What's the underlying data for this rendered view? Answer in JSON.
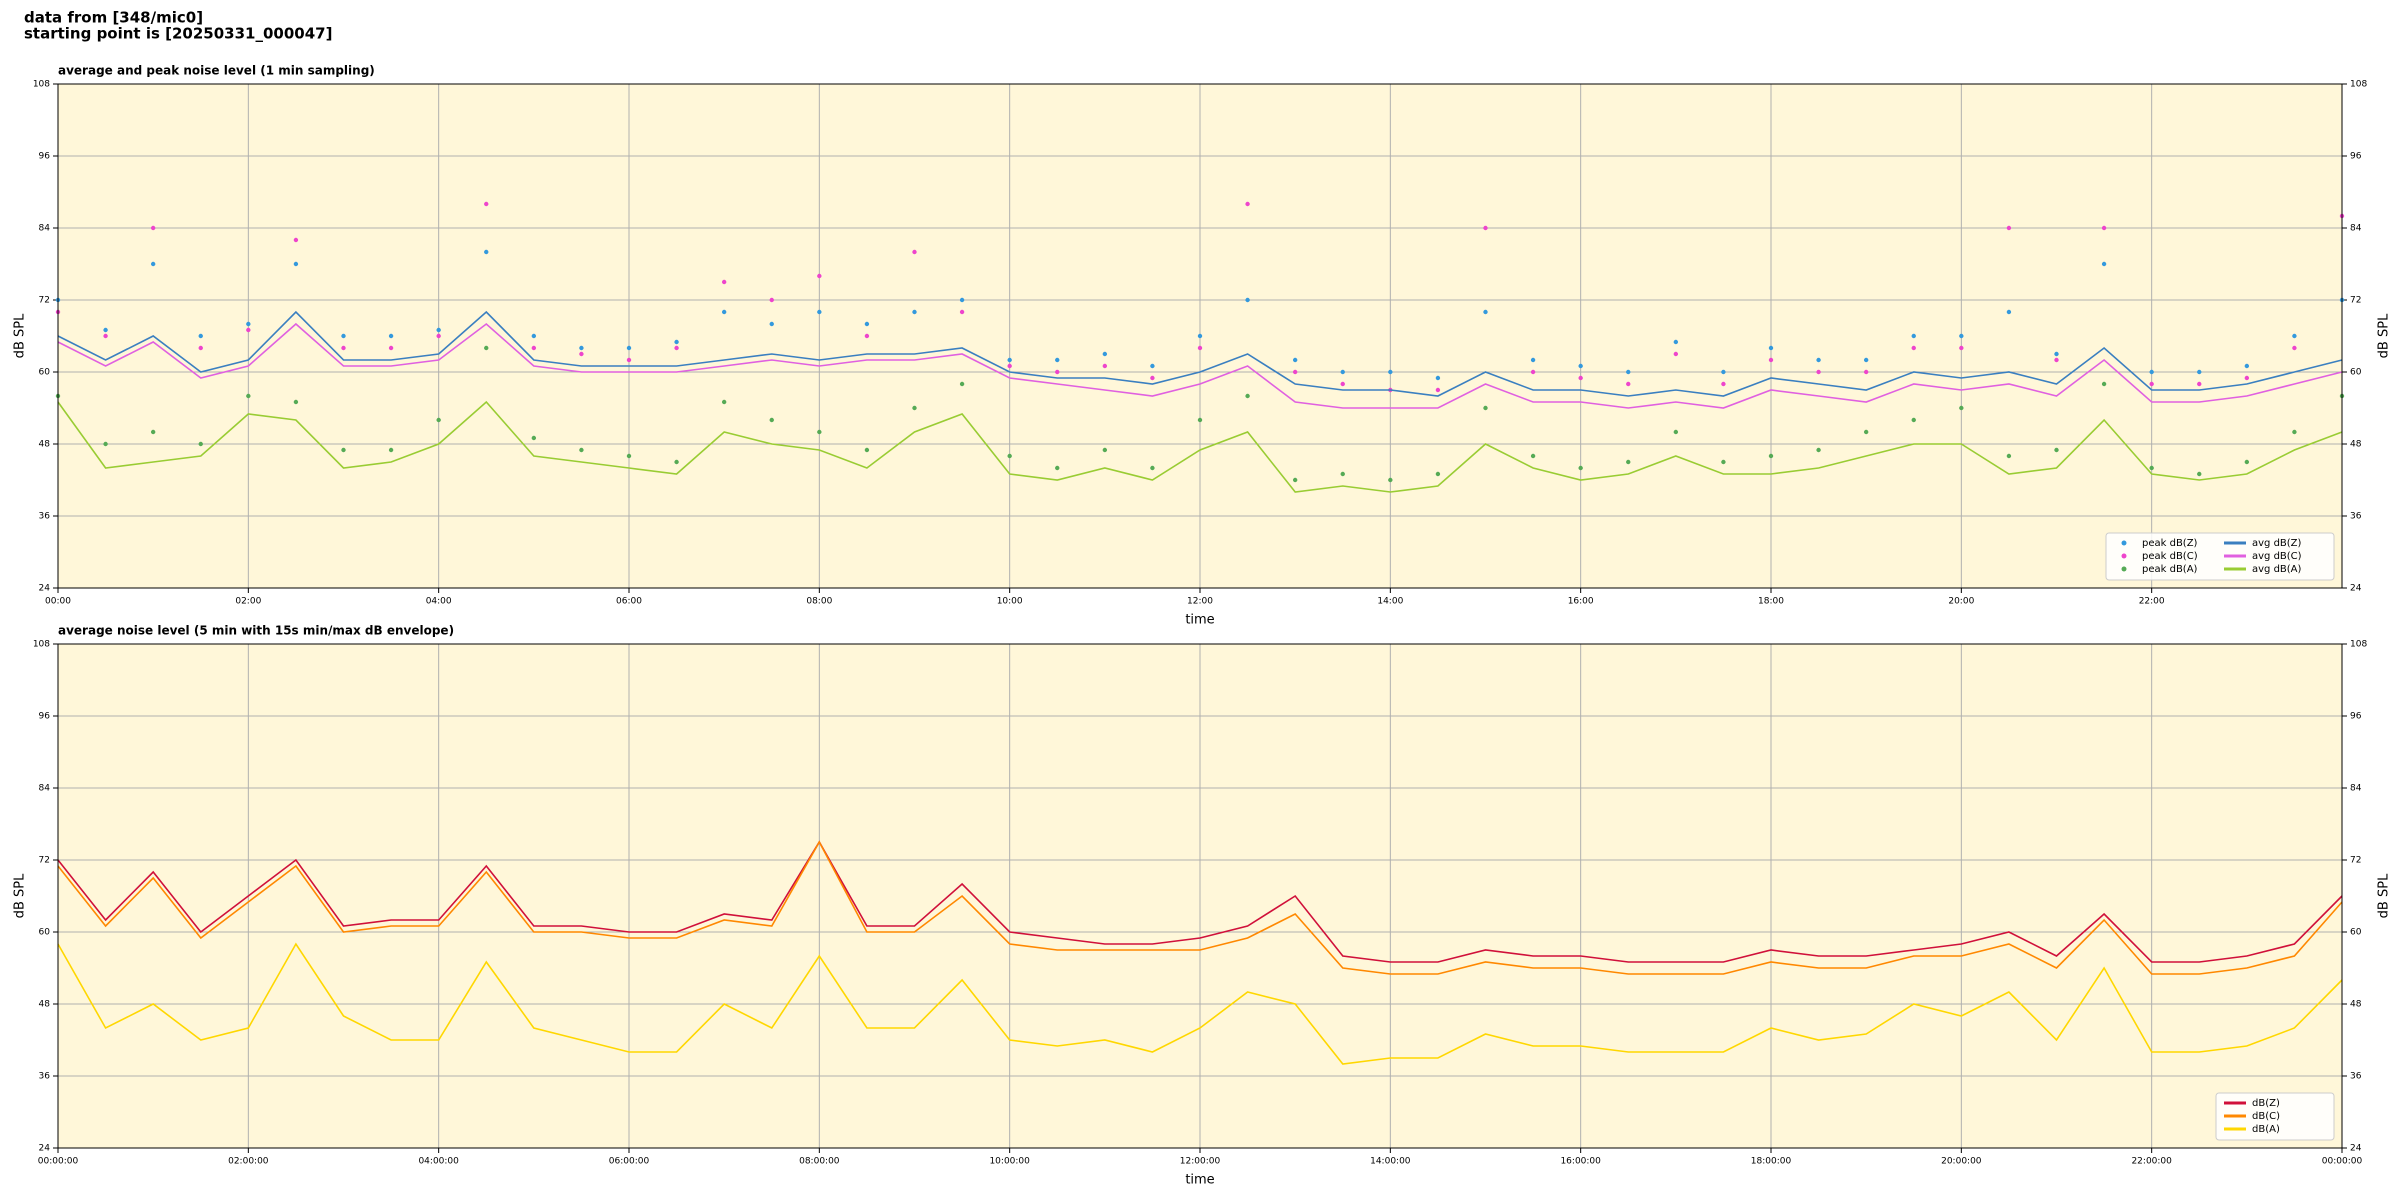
{
  "header": {
    "line1": "data from [348/mic0]",
    "line2": "starting point is [20250331_000047]"
  },
  "chart_data": [
    {
      "type": "line",
      "title": "average and peak noise level (1 min sampling)",
      "x_label": "time",
      "y_label": "dB SPL",
      "background": "#fff7d9",
      "grid": true,
      "legend": "lower right",
      "legend_columns": 2,
      "x": [
        0,
        0.5,
        1,
        1.5,
        2,
        2.5,
        3,
        3.5,
        4,
        4.5,
        5,
        5.5,
        6,
        6.5,
        7,
        7.5,
        8,
        8.5,
        9,
        9.5,
        10,
        10.5,
        11,
        11.5,
        12,
        12.5,
        13,
        13.5,
        14,
        14.5,
        15,
        15.5,
        16,
        16.5,
        17,
        17.5,
        18,
        18.5,
        19,
        19.5,
        20,
        20.5,
        21,
        21.5,
        22,
        22.5,
        23,
        23.5,
        24
      ],
      "xlim": [
        0,
        24
      ],
      "xticks": [
        {
          "value": 0,
          "label": "00:00"
        },
        {
          "value": 2,
          "label": "02:00"
        },
        {
          "value": 4,
          "label": "04:00"
        },
        {
          "value": 6,
          "label": "06:00"
        },
        {
          "value": 8,
          "label": "08:00"
        },
        {
          "value": 10,
          "label": "10:00"
        },
        {
          "value": 12,
          "label": "12:00"
        },
        {
          "value": 14,
          "label": "14:00"
        },
        {
          "value": 16,
          "label": "16:00"
        },
        {
          "value": 18,
          "label": "18:00"
        },
        {
          "value": 20,
          "label": "20:00"
        },
        {
          "value": 22,
          "label": "22:00"
        }
      ],
      "ylim": [
        24,
        108
      ],
      "yticks": [
        24,
        36,
        48,
        60,
        72,
        84,
        96,
        108
      ],
      "series": [
        {
          "name": "peak dB(Z)",
          "mark": "dot",
          "color": "#3399dd",
          "values": [
            72,
            67,
            78,
            66,
            68,
            78,
            66,
            66,
            67,
            80,
            66,
            64,
            64,
            65,
            70,
            68,
            70,
            68,
            70,
            72,
            62,
            62,
            63,
            61,
            66,
            72,
            62,
            60,
            60,
            59,
            70,
            62,
            61,
            60,
            65,
            60,
            64,
            62,
            62,
            66,
            66,
            70,
            63,
            78,
            60,
            60,
            61,
            66,
            72
          ]
        },
        {
          "name": "peak dB(C)",
          "mark": "dot",
          "color": "#ee44cc",
          "values": [
            70,
            66,
            84,
            64,
            67,
            82,
            64,
            64,
            66,
            88,
            64,
            63,
            62,
            64,
            75,
            72,
            76,
            66,
            80,
            70,
            61,
            60,
            61,
            59,
            64,
            88,
            60,
            58,
            57,
            57,
            84,
            60,
            59,
            58,
            63,
            58,
            62,
            60,
            60,
            64,
            64,
            84,
            62,
            84,
            58,
            58,
            59,
            64,
            86
          ]
        },
        {
          "name": "peak dB(A)",
          "mark": "dot",
          "color": "#55aa55",
          "values": [
            56,
            48,
            50,
            48,
            56,
            55,
            47,
            47,
            52,
            64,
            49,
            47,
            46,
            45,
            55,
            52,
            50,
            47,
            54,
            58,
            46,
            44,
            47,
            44,
            52,
            56,
            42,
            43,
            42,
            43,
            54,
            46,
            44,
            45,
            50,
            45,
            46,
            47,
            50,
            52,
            54,
            46,
            47,
            58,
            44,
            43,
            45,
            50,
            56
          ]
        },
        {
          "name": "avg dB(Z)",
          "mark": "line",
          "color": "#3a7fc0",
          "values": [
            66,
            62,
            66,
            60,
            62,
            70,
            62,
            62,
            63,
            70,
            62,
            61,
            61,
            61,
            62,
            63,
            62,
            63,
            63,
            64,
            60,
            59,
            59,
            58,
            60,
            63,
            58,
            57,
            57,
            56,
            60,
            57,
            57,
            56,
            57,
            56,
            59,
            58,
            57,
            60,
            59,
            60,
            58,
            64,
            57,
            57,
            58,
            60,
            62
          ]
        },
        {
          "name": "avg dB(C)",
          "mark": "line",
          "color": "#e060e0",
          "values": [
            65,
            61,
            65,
            59,
            61,
            68,
            61,
            61,
            62,
            68,
            61,
            60,
            60,
            60,
            61,
            62,
            61,
            62,
            62,
            63,
            59,
            58,
            57,
            56,
            58,
            61,
            55,
            54,
            54,
            54,
            58,
            55,
            55,
            54,
            55,
            54,
            57,
            56,
            55,
            58,
            57,
            58,
            56,
            62,
            55,
            55,
            56,
            58,
            60
          ]
        },
        {
          "name": "avg dB(A)",
          "mark": "line",
          "color": "#99cc33",
          "values": [
            55,
            44,
            45,
            46,
            53,
            52,
            44,
            45,
            48,
            55,
            46,
            45,
            44,
            43,
            50,
            48,
            47,
            44,
            50,
            53,
            43,
            42,
            44,
            42,
            47,
            50,
            40,
            41,
            40,
            41,
            48,
            44,
            42,
            43,
            46,
            43,
            43,
            44,
            46,
            48,
            48,
            43,
            44,
            52,
            43,
            42,
            43,
            47,
            50
          ]
        }
      ]
    },
    {
      "type": "line",
      "title": "average noise level (5 min with 15s min/max dB envelope)",
      "x_label": "time",
      "y_label": "dB SPL",
      "background": "#fff7d9",
      "grid": true,
      "legend": "lower right",
      "legend_columns": 1,
      "x": [
        0,
        0.5,
        1,
        1.5,
        2,
        2.5,
        3,
        3.5,
        4,
        4.5,
        5,
        5.5,
        6,
        6.5,
        7,
        7.5,
        8,
        8.5,
        9,
        9.5,
        10,
        10.5,
        11,
        11.5,
        12,
        12.5,
        13,
        13.5,
        14,
        14.5,
        15,
        15.5,
        16,
        16.5,
        17,
        17.5,
        18,
        18.5,
        19,
        19.5,
        20,
        20.5,
        21,
        21.5,
        22,
        22.5,
        23,
        23.5,
        24
      ],
      "xlim": [
        0,
        24
      ],
      "xticks": [
        {
          "value": 0,
          "label": "00:00:00"
        },
        {
          "value": 2,
          "label": "02:00:00"
        },
        {
          "value": 4,
          "label": "04:00:00"
        },
        {
          "value": 6,
          "label": "06:00:00"
        },
        {
          "value": 8,
          "label": "08:00:00"
        },
        {
          "value": 10,
          "label": "10:00:00"
        },
        {
          "value": 12,
          "label": "12:00:00"
        },
        {
          "value": 14,
          "label": "14:00:00"
        },
        {
          "value": 16,
          "label": "16:00:00"
        },
        {
          "value": 18,
          "label": "18:00:00"
        },
        {
          "value": 20,
          "label": "20:00:00"
        },
        {
          "value": 22,
          "label": "22:00:00"
        },
        {
          "value": 24,
          "label": "00:00:00"
        }
      ],
      "ylim": [
        24,
        108
      ],
      "yticks": [
        24,
        36,
        48,
        60,
        72,
        84,
        96,
        108
      ],
      "series": [
        {
          "name": "dB(Z)",
          "mark": "line",
          "color": "#d0103a",
          "values": [
            72,
            62,
            70,
            60,
            66,
            72,
            61,
            62,
            62,
            71,
            61,
            61,
            60,
            60,
            63,
            62,
            75,
            61,
            61,
            68,
            60,
            59,
            58,
            58,
            59,
            61,
            66,
            56,
            55,
            55,
            57,
            56,
            56,
            55,
            55,
            55,
            57,
            56,
            56,
            57,
            58,
            60,
            56,
            63,
            55,
            55,
            56,
            58,
            66
          ]
        },
        {
          "name": "dB(C)",
          "mark": "line",
          "color": "#ff8800",
          "values": [
            71,
            61,
            69,
            59,
            65,
            71,
            60,
            61,
            61,
            70,
            60,
            60,
            59,
            59,
            62,
            61,
            75,
            60,
            60,
            66,
            58,
            57,
            57,
            57,
            57,
            59,
            63,
            54,
            53,
            53,
            55,
            54,
            54,
            53,
            53,
            53,
            55,
            54,
            54,
            56,
            56,
            58,
            54,
            62,
            53,
            53,
            54,
            56,
            65
          ]
        },
        {
          "name": "dB(A)",
          "mark": "line",
          "color": "#ffd700",
          "values": [
            58,
            44,
            48,
            42,
            44,
            58,
            46,
            42,
            42,
            55,
            44,
            42,
            40,
            40,
            48,
            44,
            56,
            44,
            44,
            52,
            42,
            41,
            42,
            40,
            44,
            50,
            48,
            38,
            39,
            39,
            43,
            41,
            41,
            40,
            40,
            40,
            44,
            42,
            43,
            48,
            46,
            50,
            42,
            54,
            40,
            40,
            41,
            44,
            52
          ]
        }
      ]
    }
  ]
}
